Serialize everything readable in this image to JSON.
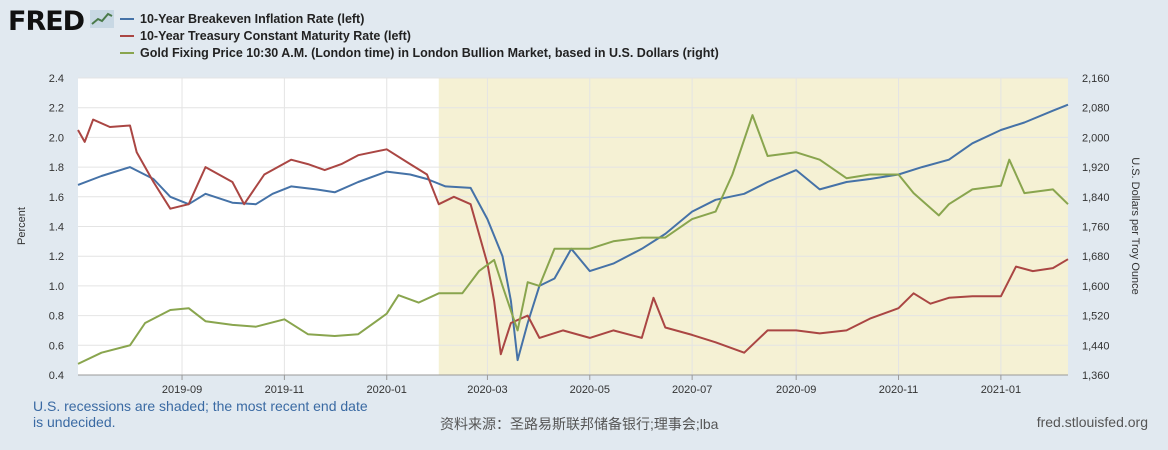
{
  "brand": {
    "name": "FRED",
    "icon": "line-chart-icon"
  },
  "legend": [
    {
      "label": "10-Year Breakeven Inflation Rate (left)",
      "color": "#4572a7"
    },
    {
      "label": "10-Year Treasury Constant Maturity Rate (left)",
      "color": "#aa4643"
    },
    {
      "label": "Gold Fixing Price 10:30 A.M. (London time) in London Bullion Market, based in U.S. Dollars (right)",
      "color": "#89a54e"
    }
  ],
  "footer": {
    "recession_note": "U.S. recessions are shaded; the most recent end date is undecided.",
    "source": "资料来源：圣路易斯联邦储备银行;理事会;lba",
    "site": "fred.stlouisfed.org"
  },
  "colors": {
    "background": "#e1e9f0",
    "plot": "#ffffff",
    "recession": "#f5f1d4"
  },
  "chart_data": {
    "type": "line",
    "x_tick_labels": [
      "2019-09",
      "2019-11",
      "2020-01",
      "2020-03",
      "2020-05",
      "2020-07",
      "2020-09",
      "2020-11",
      "2021-01"
    ],
    "x_ticks": [
      "2019-09-01",
      "2019-11-01",
      "2020-01-01",
      "2020-03-01",
      "2020-05-01",
      "2020-07-01",
      "2020-09-01",
      "2020-11-01",
      "2021-01-01"
    ],
    "xlim": [
      "2019-07-01",
      "2021-02-10"
    ],
    "recession": {
      "start": "2020-02-01",
      "end": "2021-02-10"
    },
    "y_left": {
      "label": "Percent",
      "lim": [
        0.4,
        2.4
      ],
      "ticks": [
        "0.4",
        "0.6",
        "0.8",
        "1.0",
        "1.2",
        "1.4",
        "1.6",
        "1.8",
        "2.0",
        "2.2",
        "2.4"
      ]
    },
    "y_right": {
      "label": "U.S. Dollars per Troy Ounce",
      "lim": [
        1360,
        2160
      ],
      "ticks": [
        "1,360",
        "1,440",
        "1,520",
        "1,600",
        "1,680",
        "1,760",
        "1,840",
        "1,920",
        "2,000",
        "2,080",
        "2,160"
      ]
    },
    "grid": true,
    "series": [
      {
        "name": "10-Year Breakeven Inflation Rate (left)",
        "axis": "left",
        "color": "#4572a7",
        "points": [
          [
            "2019-07-01",
            1.68
          ],
          [
            "2019-07-15",
            1.74
          ],
          [
            "2019-08-01",
            1.8
          ],
          [
            "2019-08-15",
            1.72
          ],
          [
            "2019-08-25",
            1.6
          ],
          [
            "2019-09-05",
            1.55
          ],
          [
            "2019-09-15",
            1.62
          ],
          [
            "2019-10-01",
            1.56
          ],
          [
            "2019-10-15",
            1.55
          ],
          [
            "2019-10-25",
            1.62
          ],
          [
            "2019-11-05",
            1.67
          ],
          [
            "2019-11-20",
            1.65
          ],
          [
            "2019-12-01",
            1.63
          ],
          [
            "2019-12-15",
            1.7
          ],
          [
            "2020-01-01",
            1.77
          ],
          [
            "2020-01-15",
            1.75
          ],
          [
            "2020-01-25",
            1.72
          ],
          [
            "2020-02-05",
            1.67
          ],
          [
            "2020-02-20",
            1.66
          ],
          [
            "2020-03-01",
            1.45
          ],
          [
            "2020-03-10",
            1.2
          ],
          [
            "2020-03-15",
            0.9
          ],
          [
            "2020-03-19",
            0.5
          ],
          [
            "2020-03-25",
            0.75
          ],
          [
            "2020-04-01",
            1.0
          ],
          [
            "2020-04-10",
            1.05
          ],
          [
            "2020-04-20",
            1.25
          ],
          [
            "2020-05-01",
            1.1
          ],
          [
            "2020-05-15",
            1.15
          ],
          [
            "2020-06-01",
            1.25
          ],
          [
            "2020-06-15",
            1.35
          ],
          [
            "2020-07-01",
            1.5
          ],
          [
            "2020-07-15",
            1.58
          ],
          [
            "2020-08-01",
            1.62
          ],
          [
            "2020-08-15",
            1.7
          ],
          [
            "2020-09-01",
            1.78
          ],
          [
            "2020-09-15",
            1.65
          ],
          [
            "2020-10-01",
            1.7
          ],
          [
            "2020-10-15",
            1.72
          ],
          [
            "2020-11-01",
            1.75
          ],
          [
            "2020-11-15",
            1.8
          ],
          [
            "2020-12-01",
            1.85
          ],
          [
            "2020-12-15",
            1.96
          ],
          [
            "2021-01-01",
            2.05
          ],
          [
            "2021-01-15",
            2.1
          ],
          [
            "2021-02-01",
            2.18
          ],
          [
            "2021-02-10",
            2.22
          ]
        ]
      },
      {
        "name": "10-Year Treasury Constant Maturity Rate (left)",
        "axis": "left",
        "color": "#aa4643",
        "points": [
          [
            "2019-07-01",
            2.05
          ],
          [
            "2019-07-05",
            1.97
          ],
          [
            "2019-07-10",
            2.12
          ],
          [
            "2019-07-20",
            2.07
          ],
          [
            "2019-08-01",
            2.08
          ],
          [
            "2019-08-05",
            1.9
          ],
          [
            "2019-08-15",
            1.7
          ],
          [
            "2019-08-25",
            1.52
          ],
          [
            "2019-09-05",
            1.55
          ],
          [
            "2019-09-15",
            1.8
          ],
          [
            "2019-10-01",
            1.7
          ],
          [
            "2019-10-08",
            1.55
          ],
          [
            "2019-10-20",
            1.75
          ],
          [
            "2019-11-05",
            1.85
          ],
          [
            "2019-11-15",
            1.82
          ],
          [
            "2019-11-25",
            1.78
          ],
          [
            "2019-12-05",
            1.82
          ],
          [
            "2019-12-15",
            1.88
          ],
          [
            "2020-01-01",
            1.92
          ],
          [
            "2020-01-15",
            1.82
          ],
          [
            "2020-01-25",
            1.75
          ],
          [
            "2020-02-01",
            1.55
          ],
          [
            "2020-02-10",
            1.6
          ],
          [
            "2020-02-20",
            1.55
          ],
          [
            "2020-03-01",
            1.15
          ],
          [
            "2020-03-05",
            0.9
          ],
          [
            "2020-03-09",
            0.54
          ],
          [
            "2020-03-15",
            0.75
          ],
          [
            "2020-03-25",
            0.8
          ],
          [
            "2020-04-01",
            0.65
          ],
          [
            "2020-04-15",
            0.7
          ],
          [
            "2020-05-01",
            0.65
          ],
          [
            "2020-05-15",
            0.7
          ],
          [
            "2020-06-01",
            0.65
          ],
          [
            "2020-06-08",
            0.92
          ],
          [
            "2020-06-15",
            0.72
          ],
          [
            "2020-07-01",
            0.67
          ],
          [
            "2020-07-15",
            0.62
          ],
          [
            "2020-08-01",
            0.55
          ],
          [
            "2020-08-15",
            0.7
          ],
          [
            "2020-09-01",
            0.7
          ],
          [
            "2020-09-15",
            0.68
          ],
          [
            "2020-10-01",
            0.7
          ],
          [
            "2020-10-15",
            0.78
          ],
          [
            "2020-11-01",
            0.85
          ],
          [
            "2020-11-10",
            0.95
          ],
          [
            "2020-11-20",
            0.88
          ],
          [
            "2020-12-01",
            0.92
          ],
          [
            "2020-12-15",
            0.93
          ],
          [
            "2021-01-01",
            0.93
          ],
          [
            "2021-01-10",
            1.13
          ],
          [
            "2021-01-20",
            1.1
          ],
          [
            "2021-02-01",
            1.12
          ],
          [
            "2021-02-10",
            1.18
          ]
        ]
      },
      {
        "name": "Gold Fixing Price 10:30 A.M. (London time) in London Bullion Market, based in U.S. Dollars (right)",
        "axis": "right",
        "color": "#89a54e",
        "points": [
          [
            "2019-07-01",
            1390
          ],
          [
            "2019-07-15",
            1420
          ],
          [
            "2019-08-01",
            1440
          ],
          [
            "2019-08-10",
            1500
          ],
          [
            "2019-08-25",
            1535
          ],
          [
            "2019-09-05",
            1540
          ],
          [
            "2019-09-15",
            1505
          ],
          [
            "2019-10-01",
            1495
          ],
          [
            "2019-10-15",
            1490
          ],
          [
            "2019-11-01",
            1510
          ],
          [
            "2019-11-15",
            1470
          ],
          [
            "2019-12-01",
            1465
          ],
          [
            "2019-12-15",
            1470
          ],
          [
            "2020-01-01",
            1525
          ],
          [
            "2020-01-08",
            1575
          ],
          [
            "2020-01-20",
            1555
          ],
          [
            "2020-02-01",
            1580
          ],
          [
            "2020-02-15",
            1580
          ],
          [
            "2020-02-25",
            1640
          ],
          [
            "2020-03-05",
            1670
          ],
          [
            "2020-03-10",
            1600
          ],
          [
            "2020-03-19",
            1480
          ],
          [
            "2020-03-25",
            1610
          ],
          [
            "2020-04-01",
            1600
          ],
          [
            "2020-04-10",
            1700
          ],
          [
            "2020-04-20",
            1700
          ],
          [
            "2020-05-01",
            1700
          ],
          [
            "2020-05-15",
            1720
          ],
          [
            "2020-06-01",
            1730
          ],
          [
            "2020-06-15",
            1730
          ],
          [
            "2020-07-01",
            1780
          ],
          [
            "2020-07-15",
            1800
          ],
          [
            "2020-07-25",
            1900
          ],
          [
            "2020-08-06",
            2060
          ],
          [
            "2020-08-15",
            1950
          ],
          [
            "2020-09-01",
            1960
          ],
          [
            "2020-09-15",
            1940
          ],
          [
            "2020-10-01",
            1890
          ],
          [
            "2020-10-15",
            1900
          ],
          [
            "2020-11-01",
            1900
          ],
          [
            "2020-11-10",
            1850
          ],
          [
            "2020-11-25",
            1790
          ],
          [
            "2020-12-01",
            1820
          ],
          [
            "2020-12-15",
            1860
          ],
          [
            "2021-01-01",
            1870
          ],
          [
            "2021-01-06",
            1940
          ],
          [
            "2021-01-15",
            1850
          ],
          [
            "2021-02-01",
            1860
          ],
          [
            "2021-02-10",
            1820
          ]
        ]
      }
    ]
  }
}
